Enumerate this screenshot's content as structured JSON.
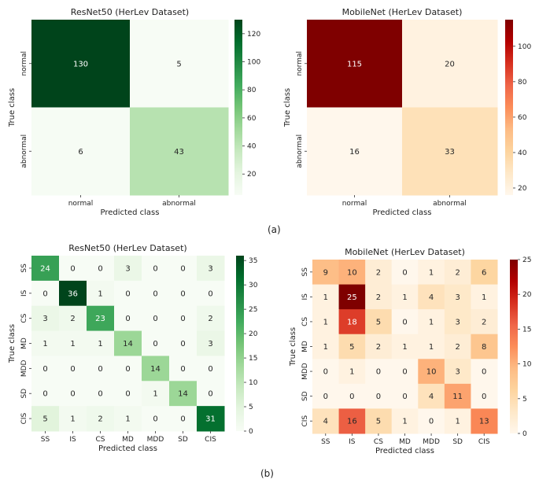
{
  "captions": {
    "a": "(a)",
    "b": "(b)"
  },
  "colormaps": {
    "greens": [
      "#f7fcf5",
      "#e5f5e0",
      "#c7e9c0",
      "#a1d99b",
      "#74c476",
      "#41ab5d",
      "#238b45",
      "#006d2c",
      "#00441b"
    ],
    "orrd": [
      "#fff7ec",
      "#fee8c8",
      "#fdd49e",
      "#fdbb84",
      "#fc8d59",
      "#ef6548",
      "#d7301f",
      "#b30000",
      "#7f0000"
    ]
  },
  "chart_data": [
    {
      "type": "heatmap",
      "title": "ResNet50 (HerLev Dataset)",
      "xlabel": "Predicted class",
      "ylabel": "True class",
      "x_categories": [
        "normal",
        "abnormal"
      ],
      "y_categories": [
        "normal",
        "abnormal"
      ],
      "values": [
        [
          130,
          5
        ],
        [
          6,
          43
        ]
      ],
      "colormap": "greens",
      "vmin": 5,
      "vmax": 130,
      "colorbar_ticks": [
        20,
        40,
        60,
        80,
        100,
        120
      ]
    },
    {
      "type": "heatmap",
      "title": "MobileNet (HerLev Dataset)",
      "xlabel": "Predicted class",
      "ylabel": "True class",
      "x_categories": [
        "normal",
        "abnormal"
      ],
      "y_categories": [
        "normal",
        "abnormal"
      ],
      "values": [
        [
          115,
          20
        ],
        [
          16,
          33
        ]
      ],
      "colormap": "orrd",
      "vmin": 16,
      "vmax": 115,
      "colorbar_ticks": [
        20,
        40,
        60,
        80,
        100
      ]
    },
    {
      "type": "heatmap",
      "title": "ResNet50 (HerLev Dataset)",
      "xlabel": "Predicted class",
      "ylabel": "True class",
      "x_categories": [
        "SS",
        "IS",
        "CS",
        "MD",
        "MDD",
        "SD",
        "CIS"
      ],
      "y_categories": [
        "SS",
        "IS",
        "CS",
        "MD",
        "MDD",
        "SD",
        "CIS"
      ],
      "values": [
        [
          24,
          0,
          0,
          3,
          0,
          0,
          3
        ],
        [
          0,
          36,
          1,
          0,
          0,
          0,
          0
        ],
        [
          3,
          2,
          23,
          0,
          0,
          0,
          2
        ],
        [
          1,
          1,
          1,
          14,
          0,
          0,
          3
        ],
        [
          0,
          0,
          0,
          0,
          14,
          0,
          0
        ],
        [
          0,
          0,
          0,
          0,
          1,
          14,
          0
        ],
        [
          5,
          1,
          2,
          1,
          0,
          0,
          31
        ]
      ],
      "colormap": "greens",
      "vmin": 0,
      "vmax": 36,
      "colorbar_ticks": [
        0,
        5,
        10,
        15,
        20,
        25,
        30,
        35
      ]
    },
    {
      "type": "heatmap",
      "title": "MobileNet (HerLev Dataset)",
      "xlabel": "Predicted class",
      "ylabel": "True class",
      "x_categories": [
        "SS",
        "IS",
        "CS",
        "MD",
        "MDD",
        "SD",
        "CIS"
      ],
      "y_categories": [
        "SS",
        "IS",
        "CS",
        "MD",
        "MDD",
        "SD",
        "CIS"
      ],
      "values": [
        [
          9,
          10,
          2,
          0,
          1,
          2,
          6
        ],
        [
          1,
          25,
          2,
          1,
          4,
          3,
          1
        ],
        [
          1,
          18,
          5,
          0,
          1,
          3,
          2
        ],
        [
          1,
          5,
          2,
          1,
          1,
          2,
          8
        ],
        [
          0,
          1,
          0,
          0,
          10,
          3,
          0
        ],
        [
          0,
          0,
          0,
          0,
          4,
          11,
          0
        ],
        [
          4,
          16,
          5,
          1,
          0,
          1,
          13
        ]
      ],
      "colormap": "orrd",
      "vmin": 0,
      "vmax": 25,
      "colorbar_ticks": [
        0,
        5,
        10,
        15,
        20,
        25
      ]
    }
  ]
}
